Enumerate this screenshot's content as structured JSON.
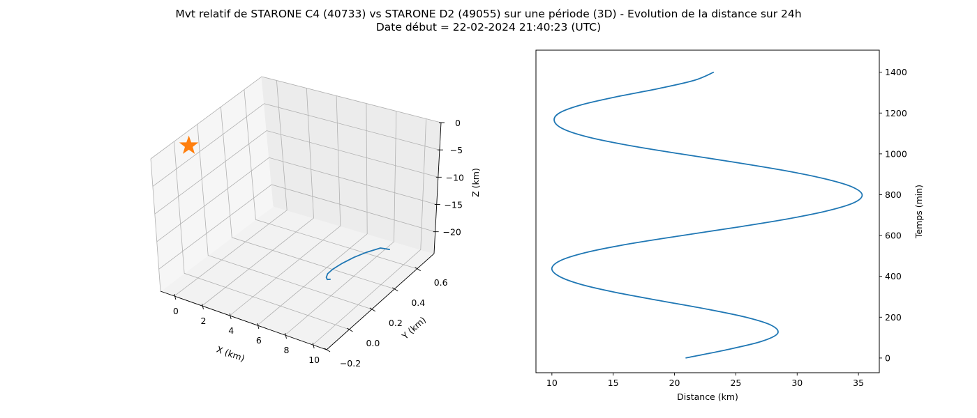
{
  "figure": {
    "title_line1": "Mvt relatif de STARONE C4 (40733) vs STARONE D2 (49055) sur une période (3D) - Evolution de la distance sur 24h",
    "title_line2": "Date début = 22-02-2024 21:40:23 (UTC)"
  },
  "chart_data": [
    {
      "type": "line3d",
      "xlabel": "X (km)",
      "ylabel": "Y (km)",
      "zlabel": "Z (km)",
      "xlim": [
        -1,
        11
      ],
      "ylim": [
        -0.2,
        0.75
      ],
      "zlim": [
        -24,
        0
      ],
      "xticks": [
        0,
        2,
        4,
        6,
        8,
        10
      ],
      "yticks": [
        -0.2,
        0.0,
        0.2,
        0.4,
        0.6
      ],
      "zticks": [
        0,
        -5,
        -10,
        -15,
        -20
      ],
      "xtick_labels": [
        "0",
        "2",
        "4",
        "6",
        "8",
        "10"
      ],
      "ytick_labels": [
        "−0.2",
        "0.0",
        "0.2",
        "0.4",
        "0.6"
      ],
      "ztick_labels": [
        "0",
        "−5",
        "−10",
        "−15",
        "−20"
      ],
      "grid": true,
      "series": [
        {
          "color": "#1f77b4",
          "points": [
            [
              10.3,
              -0.08,
              -14.5
            ],
            [
              9.9,
              -0.06,
              -15.2
            ],
            [
              9.5,
              -0.02,
              -15.8
            ],
            [
              9.1,
              0.04,
              -16.5
            ],
            [
              8.8,
              0.12,
              -17.3
            ],
            [
              8.6,
              0.22,
              -18.2
            ],
            [
              8.5,
              0.34,
              -19.2
            ],
            [
              8.5,
              0.45,
              -20.2
            ],
            [
              8.6,
              0.56,
              -21.3
            ],
            [
              8.8,
              0.62,
              -22.5
            ]
          ]
        }
      ],
      "marker": {
        "symbol": "star",
        "color": "#ff7f0e",
        "point": [
          0,
          0,
          0
        ]
      }
    },
    {
      "type": "line",
      "xlabel": "Distance (km)",
      "ylabel": "Temps (min)",
      "xlim": [
        8.7,
        36.7
      ],
      "ylim": [
        -72,
        1508
      ],
      "xticks": [
        10,
        15,
        20,
        25,
        30,
        35
      ],
      "yticks": [
        0,
        200,
        400,
        600,
        800,
        1000,
        1200,
        1400
      ],
      "grid": false,
      "y_axis_side": "right",
      "series": [
        {
          "color": "#1f77b4",
          "distance": [
            20.9,
            24.2,
            27.0,
            28.4,
            27.9,
            25.8,
            22.6,
            18.9,
            15.3,
            12.4,
            10.6,
            10.0,
            10.8,
            13.0,
            16.4,
            20.6,
            25.0,
            29.1,
            32.4,
            34.6,
            35.3,
            34.4,
            32.1,
            28.8,
            24.8,
            20.5,
            16.4,
            13.1,
            11.0,
            10.2,
            10.6,
            12.4,
            15.3,
            18.7,
            21.6,
            23.2
          ],
          "time": [
            0,
            40,
            80,
            120,
            160,
            200,
            240,
            280,
            320,
            360,
            400,
            440,
            480,
            520,
            560,
            600,
            640,
            680,
            720,
            760,
            800,
            840,
            880,
            920,
            960,
            1000,
            1040,
            1080,
            1120,
            1160,
            1200,
            1240,
            1280,
            1320,
            1360,
            1400
          ]
        }
      ]
    }
  ]
}
